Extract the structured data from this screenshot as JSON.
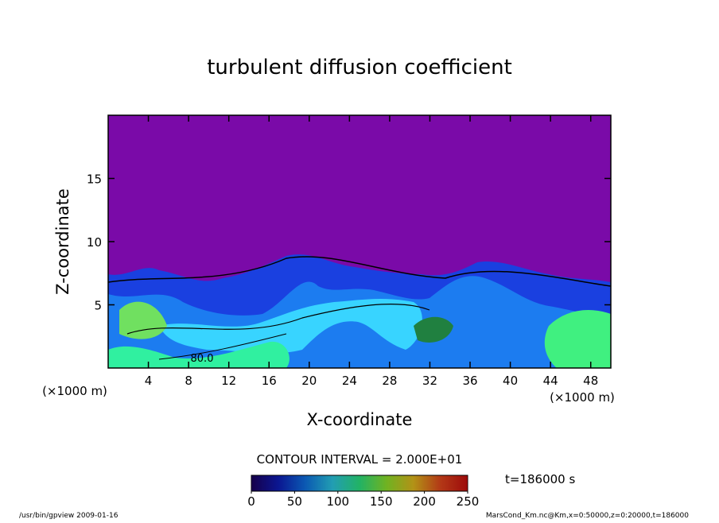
{
  "chart_data": {
    "type": "contour",
    "title": "turbulent diffusion coefficient",
    "x_label": "X-coordinate",
    "y_label": "Z-coordinate",
    "x_unit_label": "(×1000 m)",
    "xlim": [
      0,
      50
    ],
    "xticks": [
      4,
      8,
      12,
      16,
      20,
      24,
      28,
      32,
      36,
      40,
      44,
      48
    ],
    "ylim": [
      0,
      20
    ],
    "yticks": [
      5,
      10,
      15
    ],
    "contour_label": "80.0",
    "contour_interval": "CONTOUR INTERVAL = 2.000E+01",
    "time_label": "t=186000 s",
    "colorbar": {
      "lim": [
        0,
        250
      ],
      "ticks": [
        0,
        50,
        100,
        150,
        200,
        250
      ],
      "colors": [
        "#20006a",
        "#1020d0",
        "#1080ff",
        "#30e0ff",
        "#30ff90",
        "#a0ff30",
        "#ffd020",
        "#ff5020",
        "#e01010"
      ]
    },
    "footer_left": "/usr/bin/gpview   2009-01-16",
    "footer_right": "MarsCond_Km.nc@Km,x=0:50000,z=0:20000,t=186000"
  }
}
